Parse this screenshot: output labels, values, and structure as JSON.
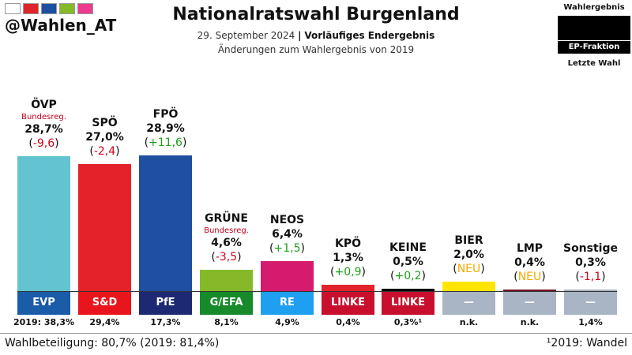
{
  "header": {
    "handle": "@Wahlen_AT",
    "title": "Nationalratswahl Burgenland",
    "date": "29. September 2024",
    "separator": "|",
    "status": "Vorläufiges Endergebnis",
    "subtitle2": "Änderungen zum Wahlergebnis von 2019"
  },
  "legend": {
    "top": "Wahlergebnis",
    "middle": "EP-Fraktion",
    "bottom": "Letzte Wahl"
  },
  "flags": [
    "#ffffff",
    "#e0242c",
    "#1f4fa0",
    "#86b92a",
    "#ee3a8c"
  ],
  "footer": {
    "turnout": "Wahlbeteiligung: 80,7% (2019: 81,4%)",
    "note": "¹2019: Wandel"
  },
  "colors": {
    "positive": "#1a9f1a",
    "negative": "#d0021b",
    "new": "#f2a900"
  },
  "chart_data": {
    "type": "bar",
    "title": "Nationalratswahl Burgenland",
    "categories": [
      "ÖVP",
      "SPÖ",
      "FPÖ",
      "GRÜNE",
      "NEOS",
      "KPÖ",
      "KEINE",
      "BIER",
      "LMP",
      "Sonstige"
    ],
    "values": [
      28.7,
      27.0,
      28.9,
      4.6,
      6.4,
      1.3,
      0.5,
      2.0,
      0.4,
      0.3
    ],
    "labels": [
      "28,7%",
      "27,0%",
      "28,9%",
      "4,6%",
      "6,4%",
      "1,3%",
      "0,5%",
      "2,0%",
      "0,4%",
      "0,3%"
    ],
    "changes": [
      "-9,6",
      "-2,4",
      "+11,6",
      "-3,5",
      "+1,5",
      "+0,9",
      "+0,2",
      "NEU",
      "NEU",
      "-1,1"
    ],
    "change_sign": [
      "neg",
      "neg",
      "pos",
      "neg",
      "pos",
      "pos",
      "pos",
      "new",
      "new",
      "neg"
    ],
    "government": [
      "Bundesreg.",
      "",
      "",
      "Bundesreg.",
      "",
      "",
      "",
      "",
      "",
      ""
    ],
    "ep_group": [
      "EVP",
      "S&D",
      "PfE",
      "G/EFA",
      "RE",
      "LINKE",
      "LINKE",
      "—",
      "—",
      "—"
    ],
    "last_election": [
      "2019: 38,3%",
      "29,4%",
      "17,3%",
      "8,1%",
      "4,9%",
      "0,4%",
      "0,3%¹",
      "n.k.",
      "n.k.",
      "1,4%"
    ],
    "bar_colors": [
      "#63c3d0",
      "#e3222a",
      "#1f4fa0",
      "#86b92a",
      "#d61b6e",
      "#e3222a",
      "#000000",
      "#ffe500",
      "#7a1420",
      "#a9b4c4"
    ],
    "ep_colors": [
      "#1a5ca8",
      "#e8161c",
      "#1d2a73",
      "#178a2c",
      "#1e9ff0",
      "#c8102e",
      "#c8102e",
      "#a9b4c4",
      "#a9b4c4",
      "#a9b4c4"
    ],
    "ylim": [
      0,
      30
    ]
  }
}
